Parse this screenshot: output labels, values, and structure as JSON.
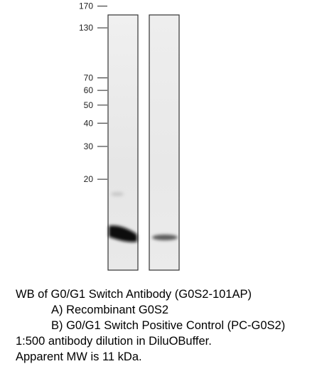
{
  "ladder": {
    "markers": [
      {
        "label": "170",
        "kda": 170
      },
      {
        "label": "130",
        "kda": 130
      },
      {
        "label": "70",
        "kda": 70
      },
      {
        "label": "60",
        "kda": 60
      },
      {
        "label": "50",
        "kda": 50
      },
      {
        "label": "40",
        "kda": 40
      },
      {
        "label": "30",
        "kda": 30
      },
      {
        "label": "20",
        "kda": 20
      }
    ]
  },
  "lanes": [
    {
      "id": "A",
      "band_intensity": 0.95,
      "band_kda": 11
    },
    {
      "id": "B",
      "band_intensity": 0.55,
      "band_kda": 11
    }
  ],
  "caption": {
    "lines": [
      "WB of G0/G1 Switch Antibody (G0S2-101AP)",
      "A) Recombinant G0S2",
      "B) G0/G1 Switch Positive Control (PC-G0S2)",
      "1:500 antibody dilution in DiluOBuffer.",
      "Apparent MW is 11 kDa."
    ]
  }
}
